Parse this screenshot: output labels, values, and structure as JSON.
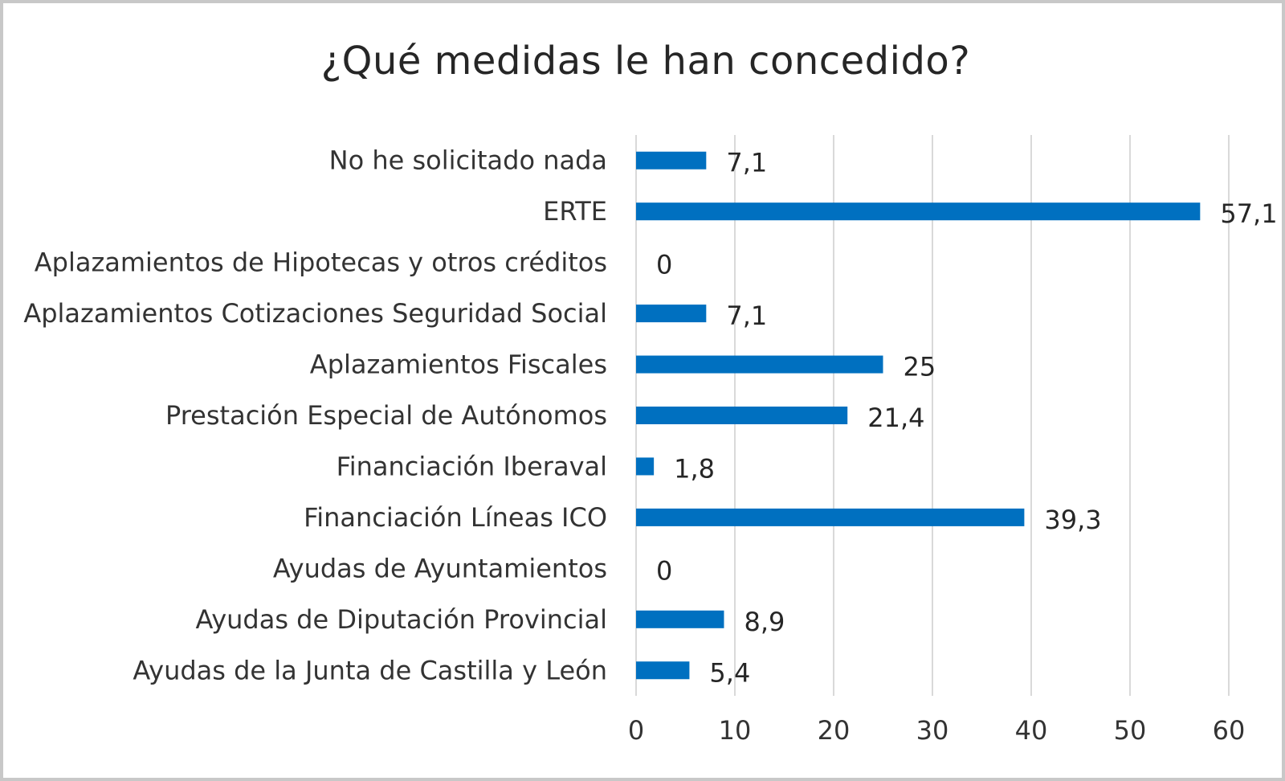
{
  "chart_data": {
    "type": "bar",
    "orientation": "horizontal",
    "title": "¿Qué medidas le han concedido?",
    "categories": [
      "No he solicitado nada",
      "ERTE",
      "Aplazamientos de Hipotecas y otros créditos",
      "Aplazamientos Cotizaciones Seguridad Social",
      "Aplazamientos Fiscales",
      "Prestación Especial de Autónomos",
      "Financiación Iberaval",
      "Financiación Líneas ICO",
      "Ayudas de Ayuntamientos",
      "Ayudas de Diputación Provincial",
      "Ayudas de la Junta de Castilla y León"
    ],
    "values": [
      7.1,
      57.1,
      0,
      7.1,
      25,
      21.4,
      1.8,
      39.3,
      0,
      8.9,
      5.4
    ],
    "value_labels": [
      "7,1",
      "57,1",
      "0",
      "7,1",
      "25",
      "21,4",
      "1,8",
      "39,3",
      "0",
      "8,9",
      "5,4"
    ],
    "xlim": [
      0,
      60
    ],
    "xticks": [
      0,
      10,
      20,
      30,
      40,
      50,
      60
    ],
    "grid": true,
    "bar_color": "#0070C0",
    "grid_color": "#d9d9d9"
  }
}
